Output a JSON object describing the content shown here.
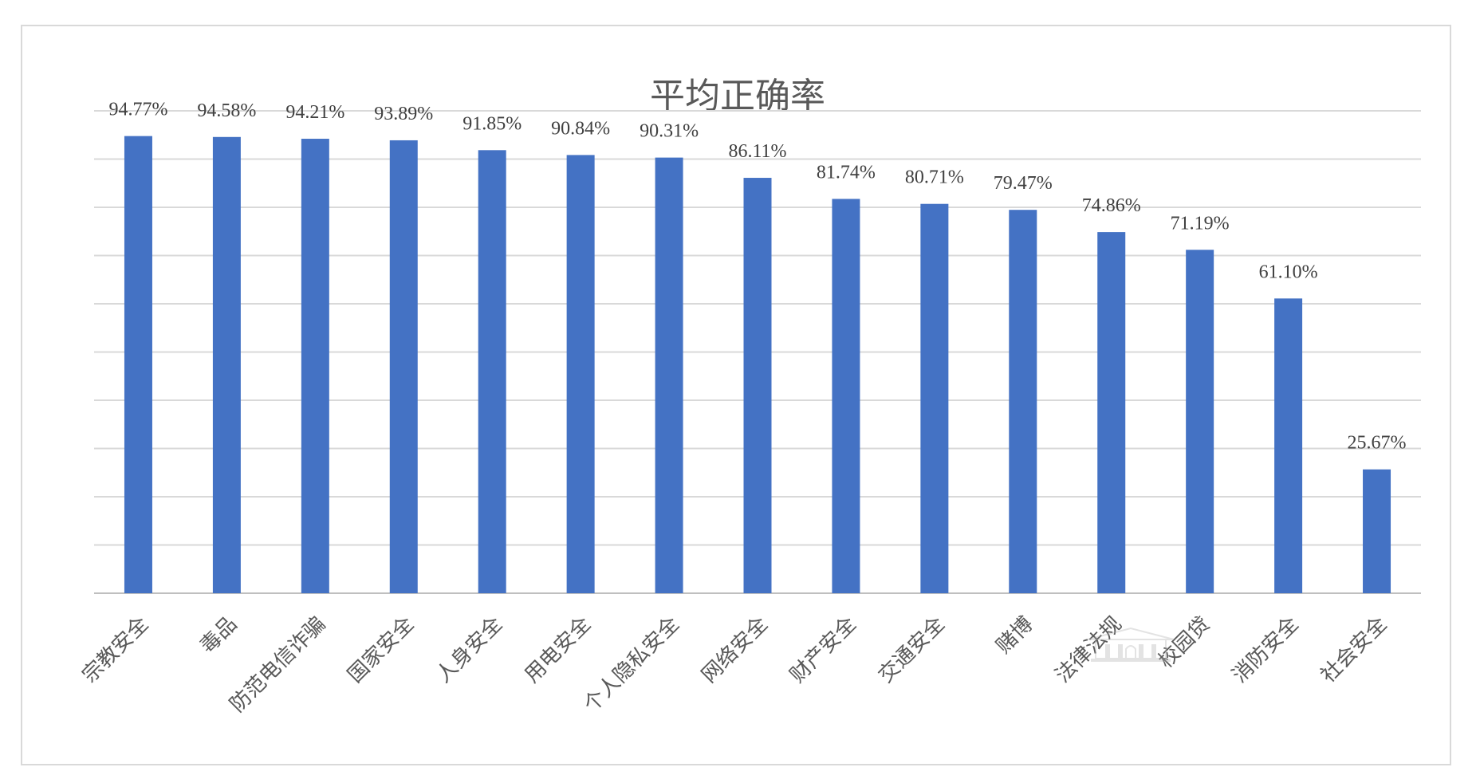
{
  "chart_data": {
    "type": "bar",
    "title": "平均正确率",
    "xlabel": "",
    "ylabel": "",
    "ylim": [
      0,
      100
    ],
    "grid": true,
    "legend": "none",
    "colors": {
      "bar": "#4472C4",
      "grid": "#D9D9D9",
      "title": "#595959",
      "label": "#404040"
    },
    "categories": [
      "宗教安全",
      "毒品",
      "防范电信诈骗",
      "国家安全",
      "人身安全",
      "用电安全",
      "个人隐私安全",
      "网络安全",
      "财产安全",
      "交通安全",
      "赌博",
      "法律法规",
      "校园贷",
      "消防安全",
      "社会安全"
    ],
    "values": [
      94.77,
      94.58,
      94.21,
      93.89,
      91.85,
      90.84,
      90.31,
      86.11,
      81.74,
      80.71,
      79.47,
      74.86,
      71.19,
      61.1,
      25.67
    ],
    "data_labels": [
      "94.77%",
      "94.58%",
      "94.21%",
      "93.89%",
      "91.85%",
      "90.84%",
      "90.31%",
      "86.11%",
      "81.74%",
      "80.71%",
      "79.47%",
      "74.86%",
      "71.19%",
      "61.10%",
      "25.67%"
    ]
  },
  "watermark": {
    "icon": "building-logo-icon"
  }
}
